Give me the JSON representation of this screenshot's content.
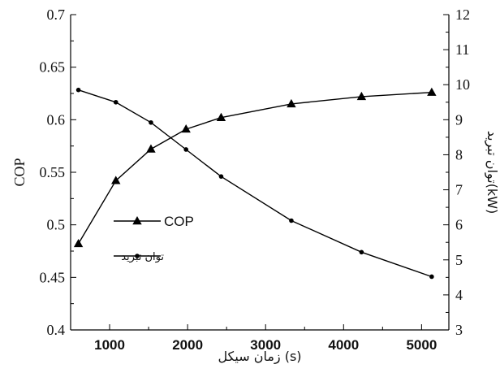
{
  "chart_data": {
    "type": "line",
    "xlabel": "زمان سیکل (s)",
    "ylabel_left": "COP",
    "ylabel_right": "توان تبرید(kW)",
    "x_ticks": [
      "1000",
      "2000",
      "3000",
      "4000",
      "5000"
    ],
    "x_tick_values": [
      1000,
      2000,
      3000,
      4000,
      5000
    ],
    "xlim": [
      500,
      5350
    ],
    "y_left_ticks": [
      "0.4",
      "0.45",
      "0.5",
      "0.55",
      "0.6",
      "0.65",
      "0.7"
    ],
    "y_left_tick_values": [
      0.4,
      0.45,
      0.5,
      0.55,
      0.6,
      0.65,
      0.7
    ],
    "ylim_left": [
      0.4,
      0.7
    ],
    "y_right_ticks": [
      "3",
      "4",
      "5",
      "6",
      "7",
      "8",
      "9",
      "10",
      "11",
      "12"
    ],
    "y_right_tick_values": [
      3,
      4,
      5,
      6,
      7,
      8,
      9,
      10,
      11,
      12
    ],
    "ylim_right": [
      3,
      12
    ],
    "grid": false,
    "legend_position": "left-middle",
    "series": [
      {
        "name": "COP",
        "axis": "left",
        "marker": "triangle",
        "color": "#000000",
        "x": [
          600,
          1080,
          1530,
          1980,
          2430,
          3330,
          4230,
          5130
        ],
        "y": [
          0.482,
          0.542,
          0.572,
          0.591,
          0.602,
          0.615,
          0.622,
          0.626
        ]
      },
      {
        "name": "توان تبرید",
        "axis": "right",
        "marker": "dot",
        "color": "#000000",
        "x": [
          600,
          1080,
          1530,
          1980,
          2430,
          3330,
          4230,
          5130
        ],
        "y": [
          9.85,
          9.5,
          8.92,
          8.15,
          7.38,
          6.12,
          5.22,
          4.52
        ]
      }
    ]
  }
}
